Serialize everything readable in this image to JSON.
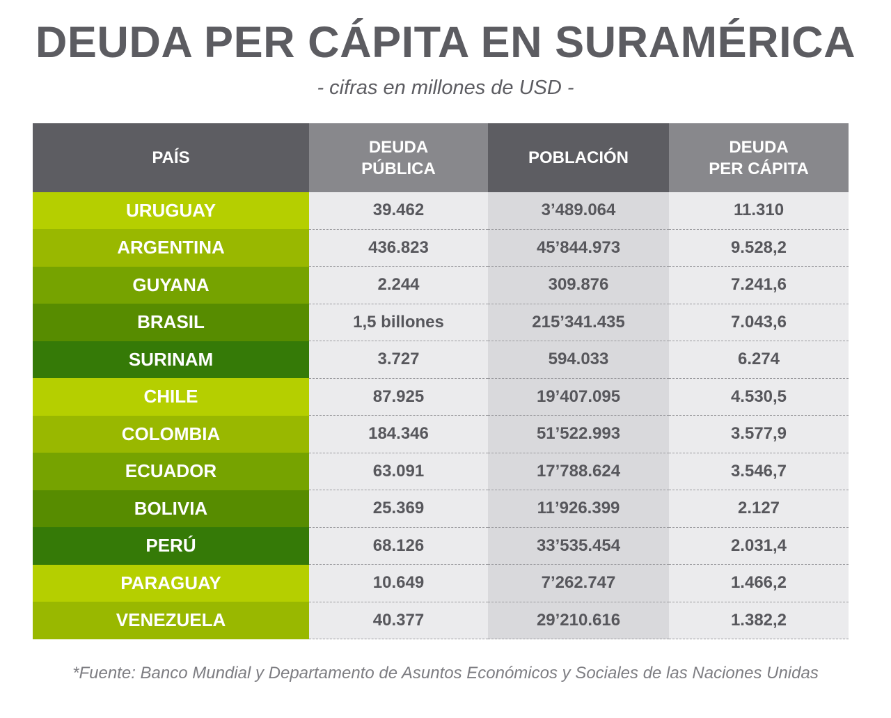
{
  "title": "DEUDA PER CÁPITA EN SURAMÉRICA",
  "subtitle": "- cifras en millones de USD -",
  "source": "*Fuente: Banco Mundial y Departamento de Asuntos Económicos y Sociales de las Naciones Unidas",
  "colors": {
    "header_dark": "#5d5d62",
    "header_light": "#88888c",
    "country_shades": [
      "#b5cf00",
      "#99b800",
      "#76a300",
      "#578c00",
      "#357a07"
    ]
  },
  "chart_data": {
    "type": "table",
    "title": "DEUDA PER CÁPITA EN SURAMÉRICA",
    "subtitle": "- cifras en millones de USD -",
    "columns": [
      "PAÍS",
      "DEUDA PÚBLICA",
      "POBLACIÓN",
      "DEUDA PER CÁPITA"
    ],
    "rows": [
      {
        "country": "URUGUAY",
        "debt": "39.462",
        "population": "3’489.064",
        "per_capita": "11.310"
      },
      {
        "country": "ARGENTINA",
        "debt": "436.823",
        "population": "45’844.973",
        "per_capita": "9.528,2"
      },
      {
        "country": "GUYANA",
        "debt": "2.244",
        "population": "309.876",
        "per_capita": "7.241,6"
      },
      {
        "country": "BRASIL",
        "debt": "1,5 billones",
        "population": "215’341.435",
        "per_capita": "7.043,6"
      },
      {
        "country": "SURINAM",
        "debt": "3.727",
        "population": "594.033",
        "per_capita": "6.274"
      },
      {
        "country": "CHILE",
        "debt": "87.925",
        "population": "19’407.095",
        "per_capita": "4.530,5"
      },
      {
        "country": "COLOMBIA",
        "debt": "184.346",
        "population": "51’522.993",
        "per_capita": "3.577,9"
      },
      {
        "country": "ECUADOR",
        "debt": "63.091",
        "population": "17’788.624",
        "per_capita": "3.546,7"
      },
      {
        "country": "BOLIVIA",
        "debt": "25.369",
        "population": "11’926.399",
        "per_capita": "2.127"
      },
      {
        "country": "PERÚ",
        "debt": "68.126",
        "population": "33’535.454",
        "per_capita": "2.031,4"
      },
      {
        "country": "PARAGUAY",
        "debt": "10.649",
        "population": "7’262.747",
        "per_capita": "1.466,2"
      },
      {
        "country": "VENEZUELA",
        "debt": "40.377",
        "population": "29’210.616",
        "per_capita": "1.382,2"
      }
    ]
  }
}
